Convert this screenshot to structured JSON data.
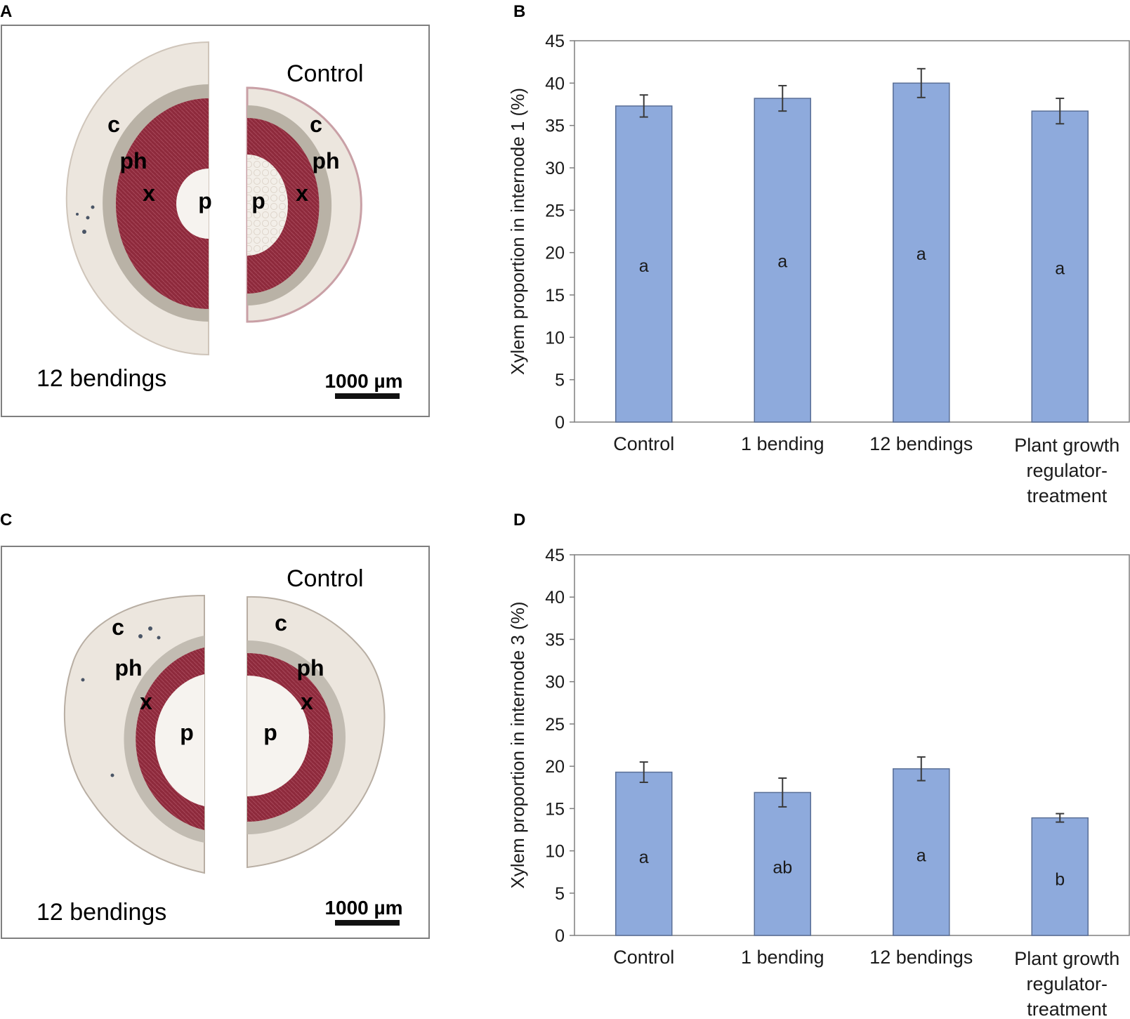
{
  "panels": {
    "A": {
      "letter": "A",
      "treatment_label": "12 bendings",
      "control_label": "Control",
      "scale_bar": "1000 µm",
      "tissue_labels": {
        "cortex": "c",
        "phloem": "ph",
        "xylem": "x",
        "pith": "p"
      }
    },
    "C": {
      "letter": "C",
      "treatment_label": "12 bendings",
      "control_label": "Control",
      "scale_bar": "1000 µm",
      "tissue_labels": {
        "cortex": "c",
        "phloem": "ph",
        "xylem": "x",
        "pith": "p"
      }
    },
    "B": {
      "letter": "B"
    },
    "D": {
      "letter": "D"
    }
  },
  "colors": {
    "bar_fill": "#8eaadc",
    "bar_stroke": "#5a6f96",
    "axis": "#7f7f7f",
    "xylem": "#8e2a3c",
    "phloem": "#b7b0a3",
    "cortex": "#e9e3db",
    "pith": "#f5f2ee"
  },
  "chart_data": [
    {
      "id": "B",
      "type": "bar",
      "categories": [
        [
          "Control"
        ],
        [
          "1 bending"
        ],
        [
          "12 bendings"
        ],
        [
          "Plant growth",
          "regulator-",
          "treatment"
        ]
      ],
      "values": [
        37.3,
        38.2,
        40.0,
        36.7
      ],
      "errors": [
        1.3,
        1.5,
        1.7,
        1.5
      ],
      "significance": [
        "a",
        "a",
        "a",
        "a"
      ],
      "significance_y": [
        18.5,
        19.0,
        19.9,
        18.2
      ],
      "ylabel": "Xylem proportion in internode 1 (%)",
      "ylim": [
        0,
        45
      ],
      "yticks": [
        0,
        5,
        10,
        15,
        20,
        25,
        30,
        35,
        40,
        45
      ]
    },
    {
      "id": "D",
      "type": "bar",
      "categories": [
        [
          "Control"
        ],
        [
          "1 bending"
        ],
        [
          "12 bendings"
        ],
        [
          "Plant growth",
          "regulator-",
          "treatment"
        ]
      ],
      "values": [
        19.3,
        16.9,
        19.7,
        13.9
      ],
      "errors": [
        1.2,
        1.7,
        1.4,
        0.5
      ],
      "significance": [
        "a",
        "ab",
        "a",
        "b"
      ],
      "significance_y": [
        9.3,
        8.1,
        9.5,
        6.7
      ],
      "ylabel": "Xylem proportion in internode 3 (%)",
      "ylim": [
        0,
        45
      ],
      "yticks": [
        0,
        5,
        10,
        15,
        20,
        25,
        30,
        35,
        40,
        45
      ]
    }
  ]
}
